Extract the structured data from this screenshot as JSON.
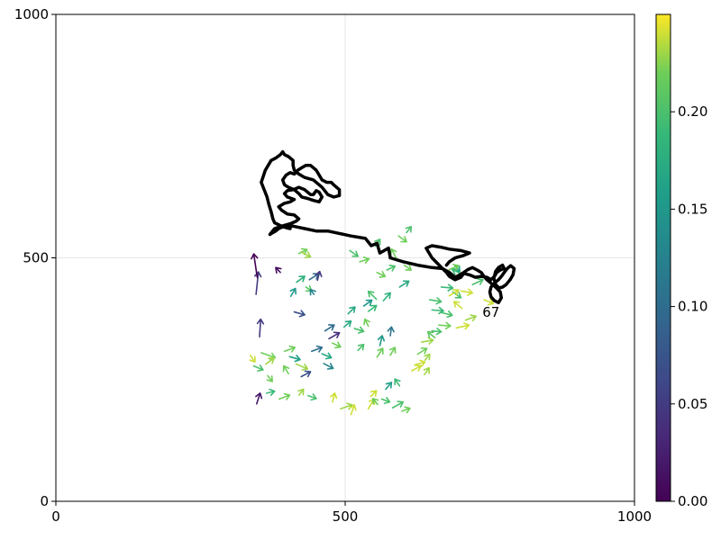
{
  "chart_data": {
    "type": "quiver",
    "title": "",
    "xlabel": "",
    "ylabel": "",
    "xlim": [
      0,
      1000
    ],
    "ylim": [
      0,
      1000
    ],
    "x_ticks": [
      "0",
      "500",
      "1000"
    ],
    "y_ticks": [
      "0",
      "500",
      "1000"
    ],
    "grid": true,
    "colormap": "viridis",
    "colorbar": {
      "range": [
        0,
        0.25
      ],
      "ticks": [
        "0.00",
        "0.05",
        "0.10",
        "0.15",
        "0.20"
      ],
      "tick_values": [
        0,
        0.05,
        0.1,
        0.15,
        0.2
      ]
    },
    "annotation": {
      "text": "67",
      "x": 752,
      "y": 388
    },
    "trajectory": [
      [
        578,
        500
      ],
      [
        575,
        520
      ],
      [
        560,
        510
      ],
      [
        555,
        530
      ],
      [
        545,
        525
      ],
      [
        535,
        540
      ],
      [
        510,
        545
      ],
      [
        490,
        550
      ],
      [
        470,
        555
      ],
      [
        450,
        555
      ],
      [
        430,
        560
      ],
      [
        410,
        565
      ],
      [
        395,
        565
      ],
      [
        385,
        560
      ],
      [
        380,
        555
      ],
      [
        375,
        552
      ],
      [
        370,
        548
      ],
      [
        378,
        560
      ],
      [
        390,
        565
      ],
      [
        405,
        570
      ],
      [
        415,
        575
      ],
      [
        420,
        580
      ],
      [
        412,
        588
      ],
      [
        400,
        590
      ],
      [
        390,
        598
      ],
      [
        385,
        605
      ],
      [
        395,
        612
      ],
      [
        405,
        615
      ],
      [
        412,
        620
      ],
      [
        400,
        625
      ],
      [
        395,
        632
      ],
      [
        400,
        638
      ],
      [
        410,
        640
      ],
      [
        420,
        645
      ],
      [
        430,
        640
      ],
      [
        440,
        630
      ],
      [
        445,
        630
      ],
      [
        450,
        638
      ],
      [
        455,
        635
      ],
      [
        460,
        625
      ],
      [
        455,
        615
      ],
      [
        445,
        618
      ],
      [
        435,
        622
      ],
      [
        425,
        625
      ],
      [
        420,
        632
      ],
      [
        412,
        640
      ],
      [
        402,
        645
      ],
      [
        395,
        650
      ],
      [
        392,
        660
      ],
      [
        398,
        670
      ],
      [
        405,
        675
      ],
      [
        412,
        672
      ],
      [
        418,
        680
      ],
      [
        425,
        685
      ],
      [
        432,
        690
      ],
      [
        440,
        690
      ],
      [
        450,
        680
      ],
      [
        455,
        670
      ],
      [
        460,
        660
      ],
      [
        468,
        655
      ],
      [
        476,
        655
      ],
      [
        480,
        650
      ],
      [
        490,
        640
      ],
      [
        490,
        628
      ],
      [
        480,
        625
      ],
      [
        470,
        630
      ],
      [
        460,
        645
      ],
      [
        445,
        660
      ],
      [
        430,
        665
      ],
      [
        420,
        672
      ],
      [
        412,
        680
      ],
      [
        410,
        690
      ],
      [
        410,
        700
      ],
      [
        402,
        708
      ],
      [
        395,
        712
      ],
      [
        392,
        718
      ],
      [
        388,
        712
      ],
      [
        380,
        705
      ],
      [
        372,
        700
      ],
      [
        362,
        680
      ],
      [
        355,
        655
      ],
      [
        360,
        640
      ],
      [
        365,
        625
      ],
      [
        368,
        610
      ],
      [
        372,
        595
      ],
      [
        375,
        580
      ],
      [
        378,
        572
      ],
      [
        390,
        565
      ],
      [
        398,
        562
      ],
      [
        405,
        560
      ]
    ],
    "trajectory_tail": [
      [
        578,
        500
      ],
      [
        600,
        492
      ],
      [
        625,
        485
      ],
      [
        650,
        480
      ],
      [
        668,
        478
      ],
      [
        675,
        470
      ],
      [
        680,
        462
      ],
      [
        690,
        455
      ],
      [
        700,
        460
      ],
      [
        705,
        468
      ],
      [
        715,
        465
      ],
      [
        725,
        460
      ],
      [
        735,
        462
      ],
      [
        745,
        460
      ],
      [
        752,
        455
      ],
      [
        758,
        462
      ],
      [
        762,
        470
      ],
      [
        768,
        475
      ],
      [
        775,
        478
      ],
      [
        772,
        485
      ],
      [
        765,
        480
      ],
      [
        760,
        472
      ],
      [
        757,
        458
      ],
      [
        760,
        445
      ],
      [
        766,
        438
      ],
      [
        772,
        440
      ],
      [
        778,
        445
      ],
      [
        785,
        455
      ],
      [
        790,
        465
      ],
      [
        792,
        478
      ],
      [
        786,
        484
      ],
      [
        780,
        478
      ],
      [
        775,
        470
      ],
      [
        770,
        462
      ],
      [
        765,
        455
      ],
      [
        758,
        448
      ],
      [
        752,
        440
      ],
      [
        750,
        430
      ],
      [
        752,
        420
      ],
      [
        758,
        412
      ],
      [
        765,
        408
      ],
      [
        770,
        418
      ],
      [
        768,
        430
      ],
      [
        760,
        440
      ],
      [
        752,
        448
      ],
      [
        745,
        455
      ],
      [
        740,
        462
      ],
      [
        735,
        470
      ],
      [
        728,
        475
      ],
      [
        720,
        480
      ],
      [
        712,
        476
      ],
      [
        705,
        470
      ],
      [
        698,
        465
      ],
      [
        690,
        460
      ],
      [
        680,
        470
      ],
      [
        668,
        478
      ],
      [
        660,
        488
      ],
      [
        650,
        500
      ],
      [
        645,
        510
      ],
      [
        640,
        520
      ],
      [
        650,
        525
      ],
      [
        665,
        522
      ],
      [
        680,
        518
      ],
      [
        700,
        515
      ],
      [
        715,
        510
      ],
      [
        705,
        505
      ],
      [
        690,
        500
      ],
      [
        680,
        492
      ],
      [
        675,
        485
      ]
    ],
    "arrows": [
      [
        347,
        200,
        6,
        22,
        0.02
      ],
      [
        352,
        338,
        2,
        36,
        0.05
      ],
      [
        346,
        425,
        4,
        46,
        0.05
      ],
      [
        348,
        460,
        -6,
        48,
        0.0
      ],
      [
        342,
        278,
        16,
        -8,
        0.2
      ],
      [
        364,
        222,
        14,
        4,
        0.19
      ],
      [
        336,
        300,
        8,
        -14,
        0.24
      ],
      [
        355,
        305,
        24,
        -10,
        0.22
      ],
      [
        363,
        282,
        14,
        12,
        0.23
      ],
      [
        366,
        258,
        8,
        -12,
        0.22
      ],
      [
        386,
        210,
        18,
        8,
        0.22
      ],
      [
        395,
        308,
        18,
        8,
        0.22
      ],
      [
        402,
        262,
        -8,
        16,
        0.22
      ],
      [
        415,
        282,
        20,
        -10,
        0.23
      ],
      [
        420,
        218,
        8,
        12,
        0.23
      ],
      [
        424,
        256,
        16,
        10,
        0.07
      ],
      [
        436,
        217,
        14,
        -6,
        0.2
      ],
      [
        404,
        297,
        18,
        -6,
        0.16
      ],
      [
        406,
        421,
        8,
        16,
        0.15
      ],
      [
        412,
        389,
        18,
        -6,
        0.07
      ],
      [
        416,
        450,
        14,
        12,
        0.18
      ],
      [
        420,
        509,
        14,
        8,
        0.22
      ],
      [
        424,
        512,
        16,
        -10,
        0.23
      ],
      [
        432,
        440,
        10,
        -8,
        0.21
      ],
      [
        438,
        455,
        16,
        12,
        0.1
      ],
      [
        452,
        454,
        4,
        18,
        0.05
      ],
      [
        446,
        425,
        -6,
        10,
        0.13
      ],
      [
        388,
        470,
        -8,
        10,
        0.01
      ],
      [
        442,
        308,
        18,
        8,
        0.1
      ],
      [
        460,
        303,
        16,
        -8,
        0.17
      ],
      [
        463,
        283,
        16,
        -10,
        0.13
      ],
      [
        478,
        204,
        4,
        18,
        0.24
      ],
      [
        492,
        190,
        20,
        8,
        0.23
      ],
      [
        510,
        178,
        6,
        20,
        0.24
      ],
      [
        522,
        310,
        10,
        12,
        0.2
      ],
      [
        540,
        190,
        10,
        20,
        0.24
      ],
      [
        544,
        215,
        10,
        12,
        0.24
      ],
      [
        556,
        199,
        -8,
        12,
        0.22
      ],
      [
        563,
        210,
        14,
        -6,
        0.2
      ],
      [
        582,
        192,
        18,
        12,
        0.2
      ],
      [
        598,
        185,
        14,
        6,
        0.22
      ],
      [
        570,
        230,
        10,
        14,
        0.16
      ],
      [
        594,
        237,
        -8,
        14,
        0.19
      ],
      [
        615,
        268,
        16,
        10,
        0.24
      ],
      [
        637,
        260,
        8,
        14,
        0.23
      ],
      [
        638,
        290,
        8,
        12,
        0.23
      ],
      [
        620,
        280,
        18,
        6,
        0.24
      ],
      [
        555,
        296,
        10,
        18,
        0.22
      ],
      [
        578,
        300,
        8,
        16,
        0.22
      ],
      [
        560,
        320,
        4,
        20,
        0.15
      ],
      [
        578,
        340,
        2,
        18,
        0.11
      ],
      [
        625,
        302,
        16,
        12,
        0.22
      ],
      [
        632,
        327,
        20,
        4,
        0.23
      ],
      [
        650,
        350,
        16,
        -2,
        0.2
      ],
      [
        655,
        336,
        -12,
        12,
        0.21
      ],
      [
        662,
        362,
        20,
        -2,
        0.22
      ],
      [
        665,
        388,
        20,
        -6,
        0.2
      ],
      [
        692,
        356,
        22,
        6,
        0.24
      ],
      [
        708,
        372,
        18,
        8,
        0.23
      ],
      [
        702,
        396,
        -14,
        14,
        0.24
      ],
      [
        686,
        430,
        14,
        -12,
        0.2
      ],
      [
        646,
        414,
        20,
        -4,
        0.2
      ],
      [
        650,
        393,
        20,
        -2,
        0.19
      ],
      [
        666,
        440,
        20,
        -2,
        0.19
      ],
      [
        680,
        422,
        16,
        12,
        0.24
      ],
      [
        700,
        432,
        20,
        -4,
        0.24
      ],
      [
        720,
        445,
        18,
        10,
        0.2
      ],
      [
        740,
        414,
        16,
        -8,
        0.24
      ],
      [
        703,
        466,
        -18,
        10,
        0.19
      ],
      [
        690,
        484,
        8,
        -12,
        0.17
      ],
      [
        680,
        476,
        16,
        8,
        0.22
      ],
      [
        540,
        390,
        14,
        12,
        0.19
      ],
      [
        554,
        415,
        -14,
        16,
        0.2
      ],
      [
        532,
        401,
        14,
        12,
        0.15
      ],
      [
        525,
        492,
        16,
        6,
        0.22
      ],
      [
        508,
        515,
        14,
        -12,
        0.2
      ],
      [
        552,
        524,
        8,
        14,
        0.2
      ],
      [
        555,
        470,
        14,
        -8,
        0.22
      ],
      [
        592,
        545,
        14,
        -12,
        0.22
      ],
      [
        606,
        552,
        8,
        12,
        0.2
      ],
      [
        566,
        412,
        12,
        16,
        0.18
      ],
      [
        588,
        500,
        -8,
        18,
        0.22
      ],
      [
        602,
        485,
        12,
        -10,
        0.22
      ],
      [
        594,
        440,
        16,
        12,
        0.17
      ],
      [
        572,
        475,
        14,
        8,
        0.2
      ],
      [
        540,
        360,
        -6,
        14,
        0.22
      ],
      [
        505,
        385,
        12,
        14,
        0.17
      ],
      [
        498,
        358,
        12,
        12,
        0.17
      ],
      [
        465,
        350,
        16,
        12,
        0.1
      ],
      [
        472,
        334,
        18,
        12,
        0.04
      ],
      [
        478,
        325,
        14,
        -8,
        0.22
      ],
      [
        516,
        355,
        16,
        -6,
        0.2
      ]
    ]
  }
}
